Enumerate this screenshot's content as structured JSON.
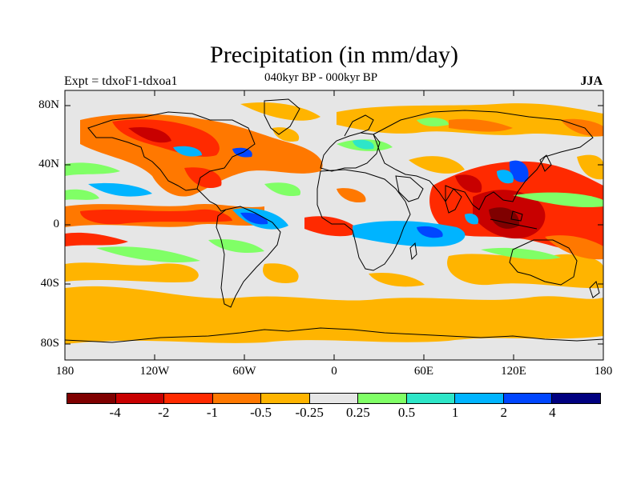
{
  "title": "Precipitation (in mm/day)",
  "subtitle": "040kyr BP - 000kyr BP",
  "experiment": "Expt = tdxoF1-tdxoa1",
  "season": "JJA",
  "y_ticks": [
    "80N",
    "40N",
    "0",
    "40S",
    "80S"
  ],
  "x_ticks": [
    "180",
    "120W",
    "60W",
    "0",
    "60E",
    "120E",
    "180"
  ],
  "legend": {
    "colors": [
      "#7f0000",
      "#c80000",
      "#ff2a00",
      "#ff7800",
      "#ffb400",
      "#e6e6e6",
      "#80ff66",
      "#2ee6c8",
      "#00b4ff",
      "#0046ff",
      "#000080"
    ],
    "labels": [
      "-4",
      "-2",
      "-1",
      "-0.5",
      "-0.25",
      "0.25",
      "0.5",
      "1",
      "2",
      "4"
    ]
  },
  "palette": {
    "neutral": "#e6e6e6",
    "coast": "#000000"
  }
}
